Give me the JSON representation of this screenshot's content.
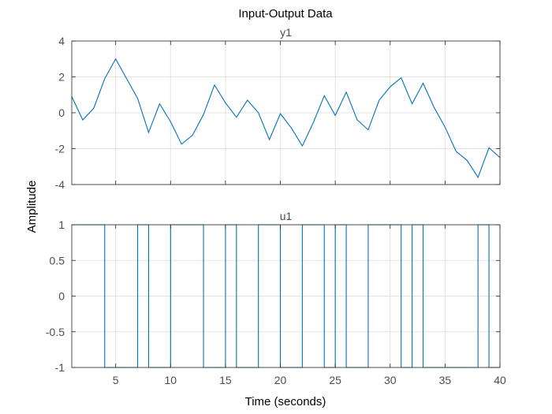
{
  "figure": {
    "title": "Input-Output Data",
    "xlabel": "Time (seconds)",
    "ylabel": "Amplitude"
  },
  "chart_data": [
    {
      "type": "line",
      "title": "y1",
      "xlim": [
        1,
        40
      ],
      "ylim": [
        -4,
        4
      ],
      "xticks": [
        5,
        10,
        15,
        20,
        25,
        30,
        35,
        40
      ],
      "yticks": [
        -4,
        -2,
        0,
        2,
        4
      ],
      "grid": true,
      "color": "#0072bd",
      "x": [
        1,
        2,
        3,
        4,
        5,
        6,
        7,
        8,
        9,
        10,
        11,
        12,
        13,
        14,
        15,
        16,
        17,
        18,
        19,
        20,
        21,
        22,
        23,
        24,
        25,
        26,
        27,
        28,
        29,
        30,
        31,
        32,
        33,
        34,
        35,
        36,
        37,
        38,
        39,
        40
      ],
      "y": [
        0.9,
        -0.4,
        0.25,
        1.9,
        3.0,
        1.9,
        0.8,
        -1.1,
        0.5,
        -0.5,
        -1.75,
        -1.25,
        -0.1,
        1.55,
        0.55,
        -0.25,
        0.7,
        0.0,
        -1.5,
        -0.05,
        -0.85,
        -1.85,
        -0.55,
        0.95,
        -0.15,
        1.15,
        -0.4,
        -0.95,
        0.7,
        1.45,
        1.95,
        0.5,
        1.65,
        0.3,
        -0.8,
        -2.15,
        -2.65,
        -3.6,
        -1.95,
        -2.5
      ]
    },
    {
      "type": "line",
      "step": true,
      "title": "u1",
      "xlim": [
        1,
        40
      ],
      "ylim": [
        -1,
        1
      ],
      "xticks": [
        5,
        10,
        15,
        20,
        25,
        30,
        35,
        40
      ],
      "yticks": [
        -1,
        -0.5,
        0,
        0.5,
        1
      ],
      "ytick_labels": [
        "-1",
        "-0.5",
        "0",
        "0.5",
        "1"
      ],
      "grid": true,
      "color": "#0072bd",
      "x": [
        1,
        2,
        3,
        4,
        5,
        6,
        7,
        8,
        9,
        10,
        11,
        12,
        13,
        14,
        15,
        16,
        17,
        18,
        19,
        20,
        21,
        22,
        23,
        24,
        25,
        26,
        27,
        28,
        29,
        30,
        31,
        32,
        33,
        34,
        35,
        36,
        37,
        38,
        39,
        40
      ],
      "y": [
        1,
        1,
        1,
        -1,
        -1,
        -1,
        1,
        -1,
        -1,
        1,
        1,
        1,
        -1,
        -1,
        1,
        -1,
        -1,
        1,
        1,
        -1,
        -1,
        1,
        1,
        -1,
        1,
        -1,
        -1,
        1,
        1,
        1,
        -1,
        1,
        -1,
        -1,
        -1,
        -1,
        -1,
        1,
        -1,
        -1
      ]
    }
  ]
}
